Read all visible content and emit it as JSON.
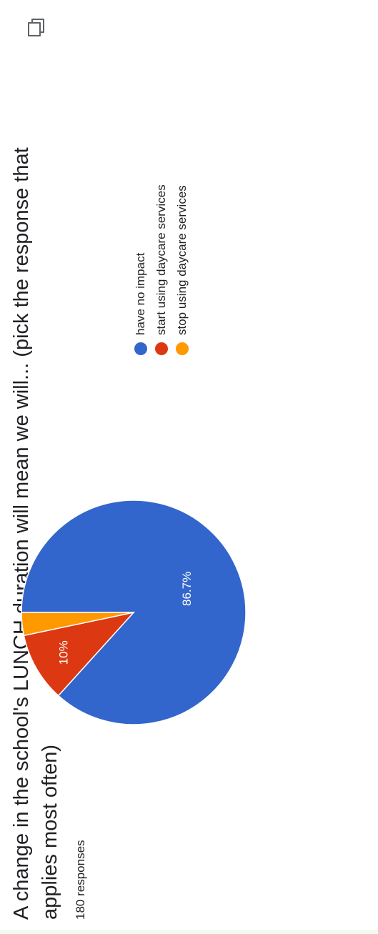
{
  "question": {
    "title": "A change in the school's LUNCH duration will mean we will... (pick the response that applies most often)",
    "responses": "180 responses"
  },
  "chart_data": {
    "type": "pie",
    "title": "A change in the school's LUNCH duration will mean we will... (pick the response that applies most often)",
    "categories": [
      "have no impact",
      "start using daycare services",
      "stop using daycare services"
    ],
    "values": [
      86.7,
      10,
      3.3
    ],
    "data_labels": [
      "86.7%",
      "10%",
      ""
    ],
    "colors": [
      "#3366cc",
      "#dc3912",
      "#ff9900"
    ],
    "legend_position": "right",
    "total_responses": 180
  }
}
